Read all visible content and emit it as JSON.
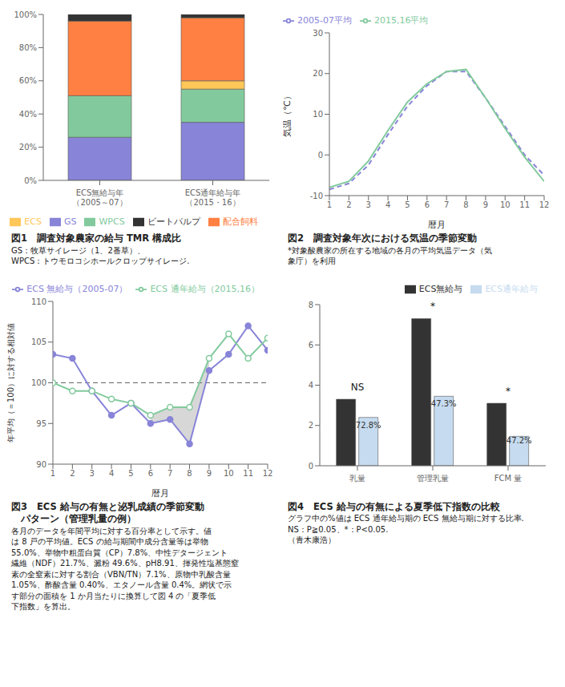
{
  "chart_data": [
    {
      "type": "bar",
      "stacked": true,
      "grid": false,
      "legend": "lower center",
      "title": "図1　調査対象農家の給与 TMR 構成比",
      "categories": [
        "ECS無給与年\n（2005～07）",
        "ECS通年給与年\n（2015・16）"
      ],
      "series": [
        {
          "name": "GS",
          "color": "#8884d8",
          "values": [
            26,
            35
          ]
        },
        {
          "name": "WPCS",
          "color": "#82ca9d",
          "values": [
            25,
            20
          ]
        },
        {
          "name": "ECS",
          "color": "#ffc658",
          "values": [
            0,
            5
          ]
        },
        {
          "name": "配合飼料",
          "color": "#ff8042",
          "values": [
            45,
            38
          ]
        },
        {
          "name": "ビートパルプ",
          "color": "#333333",
          "values": [
            4,
            2
          ]
        }
      ],
      "ylim": [
        0,
        100
      ],
      "yticks": [
        {
          "value": 0,
          "label": "0%"
        },
        {
          "value": 20,
          "label": "20%"
        },
        {
          "value": 40,
          "label": "40%"
        },
        {
          "value": 60,
          "label": "60%"
        },
        {
          "value": 80,
          "label": "80%"
        },
        {
          "value": 100,
          "label": "100%"
        }
      ],
      "annotations": [
        {
          "text": "GS：牧草サイレージ（1、2番草）、"
        },
        {
          "text": "WPCS：トウモロコシホールクロップサイレージ."
        }
      ]
    },
    {
      "type": "line",
      "grid": false,
      "legend": "upper left",
      "title": "図2　調査対象年次における気温の季節変動",
      "xlabel": "暦月",
      "ylabel": "気温（℃）",
      "x": [
        1,
        2,
        3,
        4,
        5,
        6,
        7,
        8,
        9,
        10,
        11,
        12
      ],
      "series": [
        {
          "name": "2005-07平均",
          "color": "#8884d8",
          "line_style": "dashed",
          "values": [
            -8.5,
            -7.0,
            -2.5,
            5.0,
            12.0,
            17.0,
            20.5,
            20.5,
            14.0,
            7.0,
            0.0,
            -5.0
          ]
        },
        {
          "name": "2015,16平均",
          "color": "#82ca9d",
          "line_style": "solid",
          "values": [
            -8.0,
            -6.5,
            -1.5,
            6.0,
            13.0,
            17.5,
            20.5,
            21.0,
            14.0,
            6.5,
            -0.5,
            -6.5
          ]
        }
      ],
      "xlim": [
        1,
        12
      ],
      "xticks": [
        1,
        2,
        3,
        4,
        5,
        6,
        7,
        8,
        9,
        10,
        11,
        12
      ],
      "ylim": [
        -10,
        30
      ],
      "yticks": [
        -10,
        0,
        10,
        20,
        30
      ],
      "annotations": [
        {
          "text": "*対象酸農家の所在する地域の各月の平均気温データ（気"
        },
        {
          "text": "象庁）を利用"
        }
      ]
    },
    {
      "type": "line",
      "grid": false,
      "legend": "upper right",
      "title": "図3　ECS 給与の有無と泌乳成績の季節変動",
      "subtitle": "　パターン（管理乳量の例）",
      "xlabel": "暦月",
      "ylabel": "年平均（＝100）に対する相対値",
      "x": [
        1,
        2,
        3,
        4,
        5,
        6,
        7,
        8,
        9,
        10,
        11,
        12
      ],
      "series": [
        {
          "name": "ECS 無給与（2005-07）",
          "color": "#8884d8",
          "line_style": "solid",
          "marker": "circle",
          "values": [
            103.5,
            103.0,
            99.0,
            96.0,
            97.5,
            95.0,
            95.5,
            92.5,
            101.5,
            103.5,
            107.0,
            104.0
          ]
        },
        {
          "name": "ECS 通年給与（2015,16）",
          "color": "#82ca9d",
          "line_style": "solid",
          "marker": "open_circle",
          "values": [
            100.0,
            99.0,
            99.0,
            98.0,
            97.5,
            96.0,
            97.0,
            97.0,
            103.0,
            106.0,
            103.0,
            105.5
          ]
        }
      ],
      "shade_x": [
        6,
        9
      ],
      "hline": 100,
      "xlim": [
        1,
        12
      ],
      "xticks": [
        1,
        2,
        3,
        4,
        5,
        6,
        7,
        8,
        9,
        10,
        11,
        12
      ],
      "ylim": [
        90,
        110
      ],
      "yticks": [
        90,
        95,
        100,
        105,
        110
      ],
      "annotations": [
        {
          "text": "各月のデータを年間平均に対する百分率として示す。値"
        },
        {
          "text": "は 8 戸の平均値。ECS の給与期間中成分含量等は举物"
        },
        {
          "text": "55.0%、举物中粗蛋白質（CP）7.8%、中性デタージェント"
        },
        {
          "text": "繊維（NDF）21.7%、澱粉 49.6%、pH8.91、揮発性塩基態窒"
        },
        {
          "text": "素の全窒素に対する割合（VBN/TN）7.1%、原物中乳酸含量"
        },
        {
          "text": "1.05%、酢酸含量 0.40%、エタノール含量 0.4%。網状で示"
        },
        {
          "text": "す部分の面積を 1 か月当たりに換算して図 4 の「夏季低"
        },
        {
          "text": "下指数」を算出。"
        }
      ]
    },
    {
      "type": "bar",
      "grid": false,
      "legend": "upper right",
      "title": "図4　ECS 給与の有無による夏季低下指数の比較",
      "categories": [
        "乳量",
        "管理乳量",
        "FCM 量"
      ],
      "series": [
        {
          "name": "ECS無給与",
          "color": "#333333",
          "values": [
            3.3,
            7.3,
            3.1
          ]
        },
        {
          "name": "ECS通年給与",
          "color": "#c6dbef",
          "values": [
            2.4,
            3.45,
            1.46
          ]
        }
      ],
      "ylim": [
        0,
        8
      ],
      "yticks": [
        0,
        2,
        4,
        6,
        8
      ],
      "annotations": [
        {
          "text": "NS",
          "x": "乳量",
          "y": 3.55
        },
        {
          "text": "*",
          "x": "管理乳量",
          "y": 7.55
        },
        {
          "text": "*",
          "x": "FCM 量",
          "y": 3.35
        },
        {
          "text": "72.8%",
          "x": "乳量",
          "y": 1.8,
          "series": "ECS通年給与"
        },
        {
          "text": "47.3%",
          "x": "管理乳量",
          "y": 2.85,
          "series": "ECS通年給与"
        },
        {
          "text": "47.2%",
          "x": "FCM 量",
          "y": 1.05,
          "series": "ECS通年給与"
        },
        {
          "text": "グラフ中の%値は ECS 通年給与期の ECS 無給与期に対する比率."
        },
        {
          "text": "NS：P≧0.05、*：P<0.05."
        },
        {
          "text": "（青木康浩）"
        }
      ]
    }
  ]
}
